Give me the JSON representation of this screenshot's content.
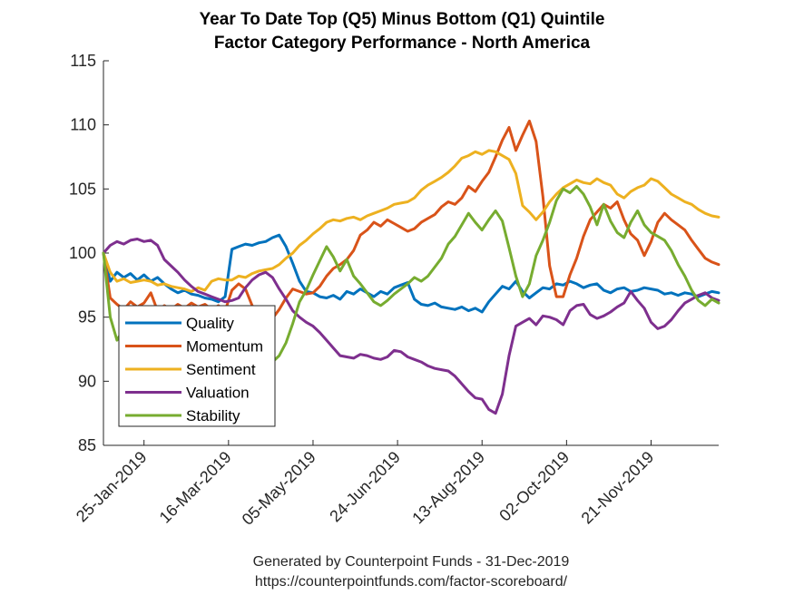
{
  "chart_data": {
    "type": "line",
    "title": [
      "Year To Date Top (Q5) Minus Bottom (Q1) Quintile",
      "Factor Category Performance - North America"
    ],
    "xlabel": "",
    "ylabel": "",
    "ylim": [
      85,
      115
    ],
    "yticks": [
      85,
      90,
      95,
      100,
      105,
      110,
      115
    ],
    "xlim_days": [
      0,
      364
    ],
    "xticks": [
      {
        "day": 24,
        "label": "25-Jan-2019"
      },
      {
        "day": 74,
        "label": "16-Mar-2019"
      },
      {
        "day": 124,
        "label": "05-May-2019"
      },
      {
        "day": 174,
        "label": "24-Jun-2019"
      },
      {
        "day": 224,
        "label": "13-Aug-2019"
      },
      {
        "day": 274,
        "label": "02-Oct-2019"
      },
      {
        "day": 324,
        "label": "21-Nov-2019"
      }
    ],
    "grid": false,
    "legend_position": "lower-left",
    "x_days": [
      0,
      4,
      8,
      12,
      16,
      20,
      24,
      28,
      32,
      36,
      40,
      44,
      48,
      52,
      56,
      60,
      64,
      68,
      72,
      76,
      80,
      84,
      88,
      92,
      96,
      100,
      104,
      108,
      112,
      116,
      120,
      124,
      128,
      132,
      136,
      140,
      144,
      148,
      152,
      156,
      160,
      164,
      168,
      172,
      176,
      180,
      184,
      188,
      192,
      196,
      200,
      204,
      208,
      212,
      216,
      220,
      224,
      228,
      232,
      236,
      240,
      244,
      248,
      252,
      256,
      260,
      264,
      268,
      272,
      276,
      280,
      284,
      288,
      292,
      296,
      300,
      304,
      308,
      312,
      316,
      320,
      324,
      328,
      332,
      336,
      340,
      344,
      348,
      352,
      356,
      360,
      364
    ],
    "series": [
      {
        "name": "Quality",
        "color": "#0072BD",
        "values": [
          100,
          97.8,
          98.5,
          98.1,
          98.4,
          97.9,
          98.3,
          97.8,
          98.1,
          97.6,
          97.2,
          96.9,
          97.1,
          96.8,
          96.7,
          96.5,
          96.4,
          96.2,
          96.6,
          100.3,
          100.5,
          100.7,
          100.6,
          100.8,
          100.9,
          101.2,
          101.4,
          100.5,
          99.2,
          97.8,
          97.0,
          96.9,
          96.6,
          96.5,
          96.7,
          96.4,
          97.0,
          96.8,
          97.2,
          96.9,
          96.6,
          97.0,
          96.8,
          97.3,
          97.5,
          97.7,
          96.4,
          96.0,
          95.9,
          96.1,
          95.8,
          95.7,
          95.6,
          95.8,
          95.5,
          95.7,
          95.4,
          96.2,
          96.8,
          97.4,
          97.2,
          97.8,
          97.0,
          96.5,
          96.9,
          97.3,
          97.2,
          97.6,
          97.5,
          97.8,
          97.6,
          97.3,
          97.5,
          97.6,
          97.1,
          96.9,
          97.2,
          97.3,
          97.0,
          97.1,
          97.3,
          97.2,
          97.1,
          96.8,
          96.9,
          96.7,
          96.9,
          96.8,
          96.6,
          96.8,
          97.0,
          96.9
        ]
      },
      {
        "name": "Momentum",
        "color": "#D95319",
        "values": [
          100,
          96.5,
          96.0,
          95.6,
          96.2,
          95.8,
          96.1,
          96.9,
          95.5,
          95.9,
          95.6,
          96.0,
          95.7,
          96.1,
          95.8,
          96.0,
          95.6,
          95.9,
          95.5,
          97.1,
          97.6,
          97.2,
          95.9,
          94.8,
          94.4,
          94.9,
          95.6,
          96.5,
          97.2,
          97.0,
          96.8,
          96.9,
          97.4,
          98.2,
          98.8,
          99.1,
          99.5,
          100.2,
          101.4,
          101.8,
          102.4,
          102.1,
          102.6,
          102.3,
          102.0,
          101.7,
          101.9,
          102.4,
          102.7,
          103.0,
          103.6,
          104.0,
          103.8,
          104.3,
          105.2,
          104.8,
          105.6,
          106.3,
          107.5,
          108.8,
          109.8,
          108.0,
          109.2,
          110.3,
          108.7,
          104.4,
          99.0,
          96.6,
          96.6,
          98.3,
          99.6,
          101.3,
          102.6,
          103.2,
          103.8,
          103.5,
          104.0,
          102.6,
          101.5,
          101.0,
          99.8,
          100.9,
          102.4,
          103.1,
          102.6,
          102.2,
          101.8,
          101.0,
          100.3,
          99.6,
          99.3,
          99.1
        ]
      },
      {
        "name": "Sentiment",
        "color": "#EDB120",
        "values": [
          100,
          98.5,
          97.8,
          98.0,
          97.7,
          97.8,
          97.9,
          97.8,
          97.5,
          97.6,
          97.4,
          97.3,
          97.2,
          97.0,
          97.3,
          97.1,
          97.8,
          98.0,
          97.9,
          97.9,
          98.2,
          98.1,
          98.4,
          98.6,
          98.7,
          98.8,
          99.1,
          99.6,
          100.0,
          100.6,
          101.0,
          101.5,
          101.9,
          102.4,
          102.6,
          102.5,
          102.7,
          102.8,
          102.6,
          102.9,
          103.1,
          103.3,
          103.5,
          103.8,
          103.9,
          104.0,
          104.3,
          104.9,
          105.3,
          105.6,
          105.9,
          106.3,
          106.8,
          107.4,
          107.6,
          107.9,
          107.7,
          108.0,
          107.9,
          107.6,
          107.3,
          106.2,
          103.7,
          103.2,
          102.6,
          103.2,
          104.0,
          104.6,
          105.1,
          105.4,
          105.7,
          105.5,
          105.4,
          105.8,
          105.5,
          105.3,
          104.6,
          104.3,
          104.8,
          105.1,
          105.3,
          105.8,
          105.6,
          105.1,
          104.6,
          104.3,
          104.0,
          103.8,
          103.4,
          103.1,
          102.9,
          102.8
        ]
      },
      {
        "name": "Valuation",
        "color": "#7E2F8E",
        "values": [
          100,
          100.6,
          100.9,
          100.7,
          101.0,
          101.1,
          100.9,
          101.0,
          100.6,
          99.5,
          99.0,
          98.5,
          97.9,
          97.4,
          97.0,
          96.8,
          96.6,
          96.4,
          96.2,
          96.3,
          96.5,
          97.3,
          97.9,
          98.3,
          98.5,
          98.1,
          97.2,
          96.4,
          95.5,
          95.0,
          94.6,
          94.3,
          93.8,
          93.2,
          92.6,
          92.0,
          91.9,
          91.8,
          92.1,
          92.0,
          91.8,
          91.7,
          91.9,
          92.4,
          92.3,
          91.9,
          91.7,
          91.5,
          91.2,
          91.0,
          90.9,
          90.8,
          90.4,
          89.8,
          89.2,
          88.7,
          88.6,
          87.8,
          87.5,
          89.0,
          92.0,
          94.3,
          94.6,
          94.9,
          94.4,
          95.1,
          95.0,
          94.8,
          94.4,
          95.5,
          95.9,
          96.0,
          95.2,
          94.9,
          95.1,
          95.4,
          95.8,
          96.1,
          97.0,
          96.3,
          95.7,
          94.6,
          94.1,
          94.3,
          94.8,
          95.5,
          96.1,
          96.4,
          96.7,
          96.9,
          96.5,
          96.3
        ]
      },
      {
        "name": "Stability",
        "color": "#77AC30",
        "values": [
          100,
          95.0,
          93.2,
          94.1,
          93.8,
          94.0,
          93.5,
          93.2,
          92.9,
          92.7,
          92.5,
          92.3,
          92.1,
          92.0,
          91.7,
          91.4,
          91.5,
          91.3,
          91.1,
          91.0,
          91.0,
          91.1,
          90.8,
          91.0,
          91.2,
          91.5,
          92.0,
          93.0,
          94.5,
          96.2,
          97.1,
          98.3,
          99.4,
          100.5,
          99.7,
          98.6,
          99.5,
          98.2,
          97.6,
          96.9,
          96.2,
          95.9,
          96.3,
          96.8,
          97.2,
          97.6,
          98.1,
          97.8,
          98.2,
          98.9,
          99.6,
          100.7,
          101.3,
          102.2,
          103.1,
          102.4,
          101.8,
          102.6,
          103.3,
          102.5,
          100.4,
          98.2,
          96.6,
          97.6,
          99.8,
          101.0,
          102.4,
          104.1,
          105.0,
          104.7,
          105.2,
          104.6,
          103.6,
          102.2,
          103.8,
          102.5,
          101.6,
          101.2,
          102.4,
          103.3,
          102.2,
          101.6,
          101.3,
          101.0,
          100.2,
          99.1,
          98.2,
          97.1,
          96.3,
          95.9,
          96.4,
          96.1
        ]
      }
    ]
  },
  "footer": {
    "line1": "Generated by Counterpoint Funds - 31-Dec-2019",
    "line2": "https://counterpointfunds.com/factor-scoreboard/"
  }
}
